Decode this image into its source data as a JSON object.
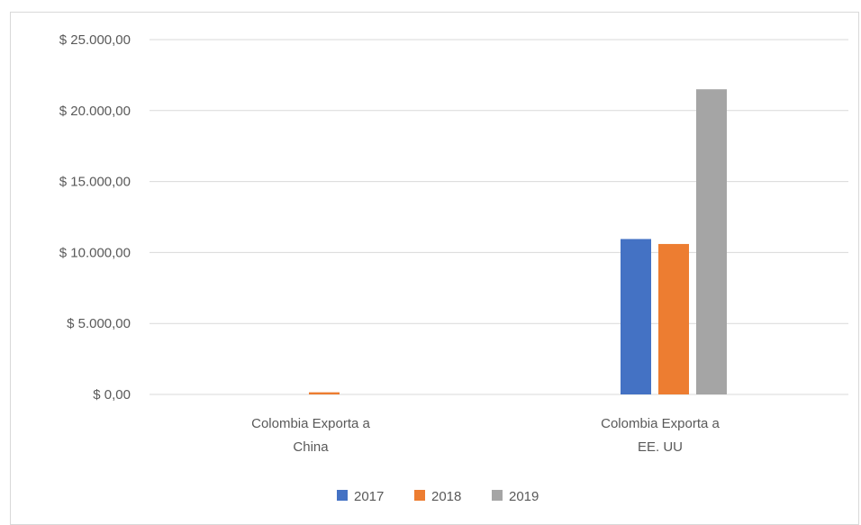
{
  "chart_data": {
    "type": "bar",
    "title": "",
    "xlabel": "",
    "ylabel": "",
    "categories": [
      [
        "Colombia Exporta a",
        "China"
      ],
      [
        "Colombia Exporta a",
        "EE. UU"
      ]
    ],
    "series": [
      {
        "name": "2017",
        "color": "#4472C4",
        "values": [
          0,
          10950
        ]
      },
      {
        "name": "2018",
        "color": "#ED7D31",
        "values": [
          150,
          10600
        ]
      },
      {
        "name": "2019",
        "color": "#A5A5A5",
        "values": [
          0,
          21500
        ]
      }
    ],
    "ylim": [
      0,
      25000
    ],
    "yticks": [
      0,
      5000,
      10000,
      15000,
      20000,
      25000
    ],
    "ytick_labels": [
      "$ 0,00",
      "$ 5.000,00",
      "$ 10.000,00",
      "$ 15.000,00",
      "$ 20.000,00",
      "$ 25.000,00"
    ],
    "grid": true,
    "legend_position": "bottom"
  }
}
